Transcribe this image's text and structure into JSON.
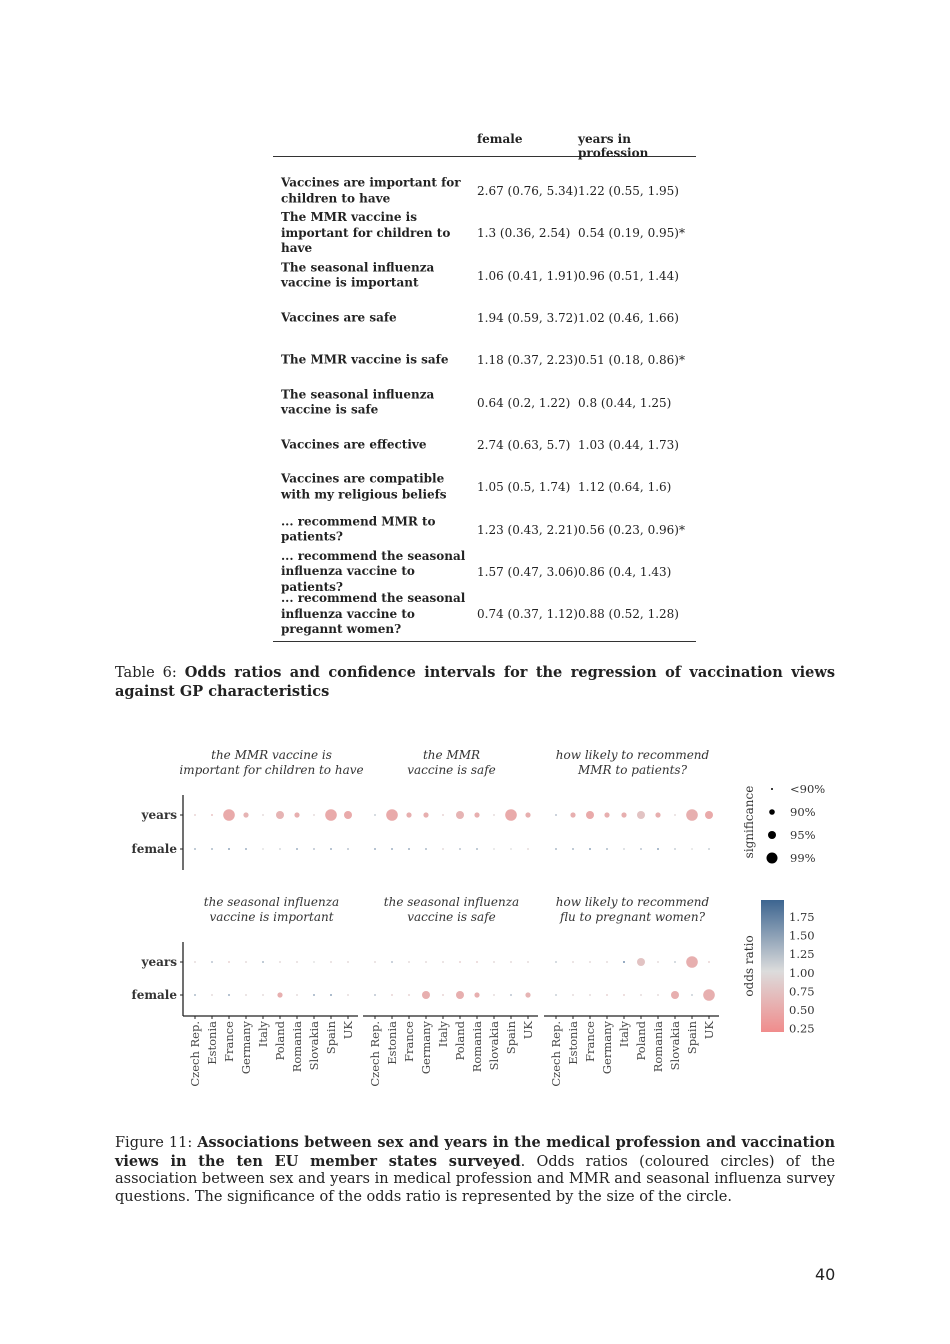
{
  "table": {
    "headers": [
      "",
      "female",
      "years in profession"
    ],
    "rows": [
      {
        "label": "Vaccines are important for children to have",
        "female": "2.67 (0.76, 5.34)",
        "years": "1.22 (0.55, 1.95)"
      },
      {
        "label": "The MMR vaccine is important for children to have",
        "female": "1.3 (0.36, 2.54)",
        "years": "0.54 (0.19, 0.95)*"
      },
      {
        "label": "The seasonal influenza vaccine is important",
        "female": "1.06 (0.41, 1.91)",
        "years": "0.96 (0.51, 1.44)"
      },
      {
        "label": "Vaccines are safe",
        "female": "1.94 (0.59, 3.72)",
        "years": "1.02 (0.46, 1.66)"
      },
      {
        "label": "The MMR vaccine is safe",
        "female": "1.18 (0.37, 2.23)",
        "years": "0.51 (0.18, 0.86)*"
      },
      {
        "label": "The seasonal influenza vaccine is safe",
        "female": "0.64 (0.2, 1.22)",
        "years": "0.8 (0.44, 1.25)"
      },
      {
        "label": "Vaccines are effective",
        "female": "2.74 (0.63, 5.7)",
        "years": "1.03 (0.44, 1.73)"
      },
      {
        "label": "Vaccines are compatible with my religious beliefs",
        "female": "1.05 (0.5, 1.74)",
        "years": "1.12 (0.64, 1.6)"
      },
      {
        "label": "... recommend MMR to patients?",
        "female": "1.23 (0.43, 2.21)",
        "years": "0.56 (0.23, 0.96)*"
      },
      {
        "label": "... recommend the seasonal influenza vaccine to patients?",
        "female": "1.57 (0.47, 3.06)",
        "years": "0.86 (0.4, 1.43)"
      },
      {
        "label": "... recommend the seasonal influenza vaccine to pregannt women?",
        "female": "0.74 (0.37, 1.12)",
        "years": "0.88 (0.52, 1.28)"
      }
    ]
  },
  "table_caption": {
    "prefix": "Table 6: ",
    "bold": "Odds ratios and confidence intervals for the regression of vaccination views against GP characteristics"
  },
  "chart_data": {
    "type": "scatter",
    "categories": [
      "Czech Rep.",
      "Estonia",
      "France",
      "Germany",
      "Italy",
      "Poland",
      "Romania",
      "Slovakia",
      "Spain",
      "UK"
    ],
    "rows": [
      "years",
      "female"
    ],
    "significance_levels": [
      "<90%",
      "90%",
      "95%",
      "99%"
    ],
    "significance_title": "significance",
    "colorbar_title": "odds ratio",
    "colorbar_ticks": [
      "1.75",
      "1.50",
      "1.25",
      "1.00",
      "0.75",
      "0.50",
      "0.25"
    ],
    "colorbar_range": [
      0.2,
      1.95
    ],
    "colors": {
      "low": "#f08c8c",
      "mid": "#dcdcdc",
      "high": "#3d6590"
    },
    "panels": [
      {
        "title": [
          "the MMR vaccine is",
          "important for children to have"
        ],
        "years": {
          "sig": [
            0,
            0,
            3,
            1,
            0,
            2,
            1,
            0,
            3,
            2
          ],
          "or": [
            0.8,
            0.6,
            0.5,
            0.6,
            0.9,
            0.6,
            0.55,
            0.9,
            0.5,
            0.5
          ]
        },
        "female": {
          "sig": [
            0,
            0,
            0,
            0,
            0,
            0,
            0,
            0,
            0,
            0
          ],
          "or": [
            1.4,
            1.4,
            1.6,
            1.5,
            1.0,
            1.1,
            1.5,
            1.3,
            1.5,
            1.3
          ]
        }
      },
      {
        "title": [
          "the MMR",
          "vaccine is safe"
        ],
        "years": {
          "sig": [
            0,
            3,
            1,
            1,
            0,
            2,
            1,
            0,
            3,
            1
          ],
          "or": [
            1.2,
            0.5,
            0.55,
            0.55,
            0.8,
            0.6,
            0.55,
            0.9,
            0.5,
            0.55
          ]
        },
        "female": {
          "sig": [
            0,
            0,
            0,
            0,
            0,
            0,
            0,
            0,
            0,
            0
          ],
          "or": [
            1.5,
            1.5,
            1.5,
            1.4,
            0.9,
            1.3,
            1.4,
            1.0,
            1.0,
            0.9
          ]
        }
      },
      {
        "title": [
          "how likely to recommend",
          "MMR to patients?"
        ],
        "years": {
          "sig": [
            0,
            1,
            2,
            1,
            1,
            2,
            1,
            0,
            3,
            2
          ],
          "or": [
            1.3,
            0.55,
            0.5,
            0.55,
            0.55,
            0.75,
            0.55,
            0.9,
            0.55,
            0.5
          ]
        },
        "female": {
          "sig": [
            0,
            0,
            0,
            0,
            0,
            0,
            0,
            0,
            0,
            0
          ],
          "or": [
            1.4,
            1.4,
            1.6,
            1.4,
            1.1,
            1.3,
            1.6,
            1.2,
            1.0,
            1.2
          ]
        }
      },
      {
        "title": [
          "the seasonal influenza",
          "vaccine is important"
        ],
        "years": {
          "sig": [
            0,
            0,
            0,
            0,
            0,
            0,
            0,
            0,
            0,
            0
          ],
          "or": [
            0.9,
            1.3,
            0.8,
            0.9,
            1.4,
            0.9,
            0.9,
            1.0,
            0.9,
            0.9
          ]
        },
        "female": {
          "sig": [
            0,
            0,
            0,
            0,
            0,
            1,
            0,
            0,
            0,
            0
          ],
          "or": [
            1.4,
            0.9,
            1.5,
            0.9,
            0.9,
            0.55,
            0.9,
            1.5,
            1.6,
            0.9
          ]
        }
      },
      {
        "title": [
          "the seasonal influenza",
          "vaccine is safe"
        ],
        "years": {
          "sig": [
            0,
            0,
            0,
            0,
            0,
            0,
            0,
            0,
            0,
            0
          ],
          "or": [
            0.9,
            1.3,
            0.9,
            0.9,
            0.9,
            0.8,
            0.8,
            0.9,
            0.9,
            0.9
          ]
        },
        "female": {
          "sig": [
            0,
            0,
            0,
            2,
            0,
            2,
            1,
            0,
            0,
            1
          ],
          "or": [
            1.3,
            0.8,
            0.8,
            0.55,
            0.8,
            0.55,
            0.55,
            0.9,
            1.3,
            0.6
          ]
        }
      },
      {
        "title": [
          "how likely to recommend",
          "flu to pregnant women?"
        ],
        "years": {
          "sig": [
            0,
            0,
            0,
            0,
            0,
            2,
            0,
            0,
            3,
            0
          ],
          "or": [
            1.2,
            0.9,
            0.9,
            0.9,
            1.8,
            0.75,
            0.9,
            1.2,
            0.55,
            0.8
          ]
        },
        "female": {
          "sig": [
            0,
            0,
            0,
            0,
            0,
            0,
            0,
            2,
            0,
            3
          ],
          "or": [
            1.2,
            0.9,
            0.9,
            0.8,
            0.8,
            0.9,
            0.9,
            0.55,
            1.2,
            0.55
          ]
        }
      }
    ]
  },
  "figure_caption": {
    "prefix": "Figure 11: ",
    "bold": "Associations between sex and years in the medical profession and vaccination views in the ten EU member states surveyed",
    "rest": ". Odds ratios (coloured circles) of the association between sex and years in medical profession and MMR and seasonal influenza survey questions. The significance of the odds ratio is represented by the size of the circle."
  },
  "page_number": "40"
}
